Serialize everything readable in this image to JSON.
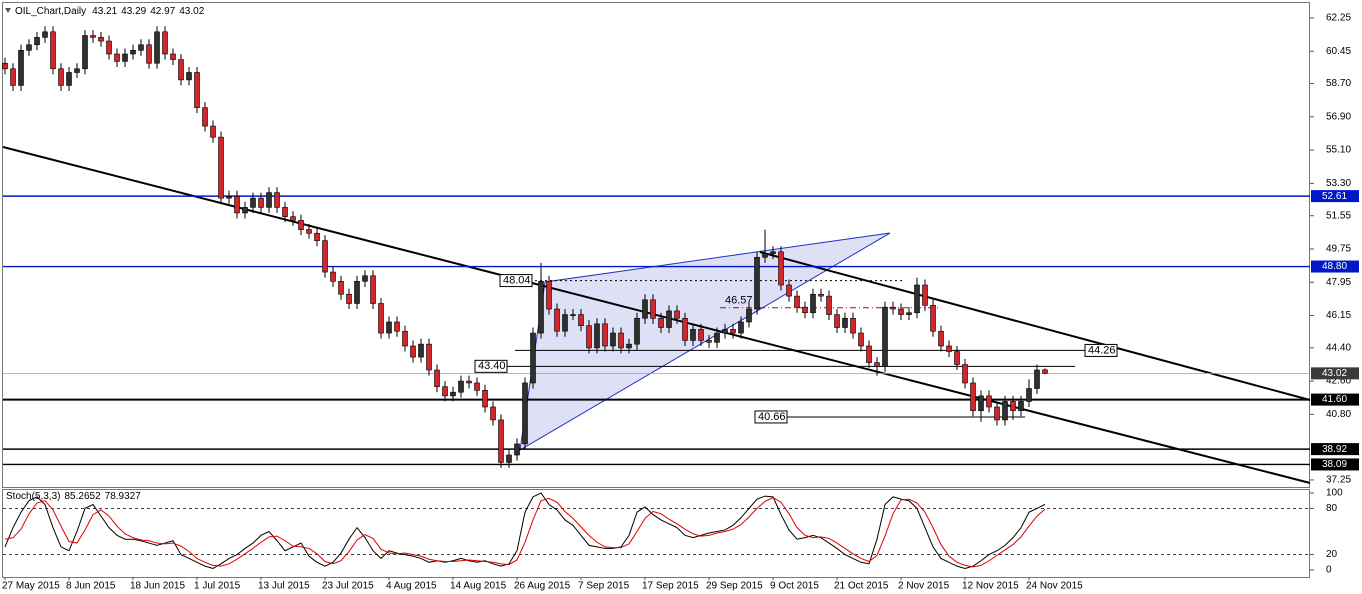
{
  "chart_data": {
    "type": "candlestick",
    "title": "OIL_Chart,Daily",
    "categories": [
      "27 May 2015",
      null,
      null,
      null,
      null,
      null,
      null,
      null,
      "8 Jun 2015",
      null,
      null,
      null,
      null,
      null,
      null,
      null,
      "18 Jun 2015",
      null,
      null,
      null,
      null,
      null,
      null,
      null,
      "1 Jul 2015",
      null,
      null,
      null,
      null,
      null,
      null,
      null,
      "13 Jul 2015",
      null,
      null,
      null,
      null,
      null,
      null,
      null,
      "23 Jul 2015",
      null,
      null,
      null,
      null,
      null,
      null,
      null,
      "4 Aug 2015",
      null,
      null,
      null,
      null,
      null,
      null,
      null,
      "14 Aug 2015",
      null,
      null,
      null,
      null,
      null,
      null,
      null,
      "26 Aug 2015",
      null,
      null,
      null,
      null,
      null,
      null,
      null,
      "7 Sep 2015",
      null,
      null,
      null,
      null,
      null,
      null,
      null,
      "17 Sep 2015",
      null,
      null,
      null,
      null,
      null,
      null,
      null,
      "29 Sep 2015",
      null,
      null,
      null,
      null,
      null,
      null,
      null,
      "9 Oct 2015",
      null,
      null,
      null,
      null,
      null,
      null,
      null,
      "21 Oct 2015",
      null,
      null,
      null,
      null,
      null,
      null,
      null,
      "2 Nov 2015",
      null,
      null,
      null,
      null,
      null,
      null,
      null,
      "12 Nov 2015",
      null,
      null,
      null,
      null,
      null,
      null,
      null,
      "24 Nov 2015",
      null,
      null
    ],
    "open": [
      59.8,
      59.5,
      58.6,
      60.5,
      60.8,
      61.2,
      61.5,
      59.5,
      58.6,
      59.3,
      59.5,
      61.3,
      61.2,
      61.0,
      60.3,
      59.9,
      60.3,
      60.5,
      60.8,
      59.8,
      61.5,
      60.3,
      60.0,
      58.9,
      59.3,
      57.4,
      56.4,
      55.8,
      52.5,
      52.6,
      51.7,
      52.0,
      52.5,
      52.0,
      52.8,
      52.0,
      51.5,
      51.3,
      50.8,
      50.6,
      50.2,
      48.5,
      48.0,
      47.3,
      46.8,
      48.0,
      48.3,
      46.8,
      45.2,
      45.8,
      45.3,
      44.5,
      43.9,
      44.6,
      43.2,
      42.3,
      41.8,
      42.0,
      42.6,
      42.5,
      42.1,
      41.2,
      40.5,
      38.2,
      38.6,
      39.2,
      42.5,
      45.2,
      48.0,
      46.5,
      45.3,
      46.2,
      46.2,
      45.6,
      44.4,
      45.7,
      44.5,
      45.2,
      44.4,
      44.6,
      46.0,
      47.0,
      46.0,
      45.5,
      46.4,
      46.0,
      44.8,
      45.4,
      44.8,
      44.7,
      45.2,
      45.4,
      45.2,
      45.8,
      46.5,
      49.3,
      49.5,
      49.6,
      47.8,
      47.2,
      46.6,
      46.3,
      47.3,
      47.2,
      46.2,
      45.5,
      46.0,
      45.2,
      44.5,
      43.6,
      43.4,
      46.6,
      46.5,
      46.2,
      46.3,
      47.8,
      46.7,
      45.3,
      44.5,
      44.2,
      43.5,
      42.5,
      41.0,
      41.8,
      41.2,
      40.5,
      41.5,
      41.0,
      41.5,
      42.2,
      43.21
    ],
    "high": [
      60.1,
      59.8,
      60.8,
      61.1,
      61.5,
      61.8,
      61.8,
      59.8,
      59.6,
      59.8,
      61.6,
      61.6,
      61.5,
      61.3,
      60.6,
      60.6,
      60.8,
      61.1,
      61.1,
      61.8,
      61.8,
      60.6,
      60.3,
      59.6,
      59.6,
      57.7,
      56.7,
      56.1,
      52.9,
      52.9,
      52.3,
      52.8,
      52.8,
      53.1,
      53.1,
      52.3,
      51.8,
      51.6,
      51.1,
      50.9,
      50.5,
      48.8,
      48.3,
      47.6,
      48.3,
      48.6,
      48.6,
      47.1,
      46.1,
      46.1,
      45.6,
      44.8,
      44.9,
      44.9,
      43.5,
      42.6,
      42.3,
      42.9,
      42.9,
      42.8,
      42.4,
      41.5,
      40.8,
      38.9,
      39.5,
      42.8,
      45.5,
      49.0,
      48.3,
      46.8,
      46.5,
      46.5,
      46.5,
      45.9,
      46.0,
      46.0,
      45.5,
      45.5,
      44.9,
      46.3,
      47.3,
      47.3,
      46.3,
      46.7,
      46.7,
      46.3,
      45.7,
      45.7,
      45.1,
      45.5,
      45.7,
      45.7,
      46.1,
      46.8,
      49.6,
      50.8,
      49.9,
      49.9,
      48.1,
      47.5,
      46.9,
      47.6,
      47.6,
      47.5,
      46.5,
      46.3,
      46.3,
      45.5,
      44.8,
      43.9,
      46.9,
      46.9,
      46.8,
      46.6,
      48.2,
      48.1,
      47.0,
      45.6,
      44.8,
      44.5,
      43.8,
      42.8,
      42.1,
      42.1,
      41.5,
      41.8,
      41.8,
      41.8,
      42.7,
      43.5,
      43.29
    ],
    "low": [
      59.2,
      58.3,
      58.3,
      60.2,
      60.5,
      60.9,
      59.2,
      58.3,
      58.3,
      59.0,
      59.2,
      60.9,
      60.7,
      60.0,
      59.6,
      59.6,
      60.0,
      60.2,
      59.5,
      59.5,
      60.0,
      59.7,
      58.6,
      58.6,
      57.1,
      56.1,
      55.5,
      52.2,
      52.2,
      51.4,
      51.4,
      51.7,
      51.7,
      51.7,
      51.7,
      51.2,
      51.0,
      50.5,
      50.3,
      49.9,
      48.2,
      47.7,
      47.0,
      46.5,
      46.5,
      47.7,
      46.5,
      44.9,
      44.9,
      45.0,
      44.2,
      43.6,
      43.6,
      42.9,
      42.0,
      41.5,
      41.5,
      41.7,
      42.2,
      41.8,
      40.9,
      40.2,
      37.9,
      37.9,
      38.3,
      38.9,
      42.2,
      44.9,
      46.2,
      45.0,
      45.0,
      45.9,
      45.3,
      44.1,
      44.1,
      44.2,
      44.2,
      44.1,
      44.1,
      44.3,
      45.7,
      45.7,
      45.2,
      45.2,
      45.7,
      44.5,
      44.5,
      44.5,
      44.4,
      44.4,
      44.9,
      44.9,
      44.9,
      45.5,
      46.2,
      49.0,
      49.2,
      47.5,
      46.9,
      46.3,
      46.0,
      46.0,
      46.9,
      45.9,
      45.2,
      45.2,
      44.9,
      44.2,
      43.3,
      42.9,
      43.1,
      46.2,
      45.9,
      45.9,
      46.0,
      46.4,
      45.0,
      44.2,
      43.9,
      43.2,
      42.2,
      40.7,
      40.4,
      40.9,
      40.2,
      40.2,
      40.5,
      40.7,
      41.2,
      41.9,
      42.97
    ],
    "close": [
      59.5,
      58.6,
      60.5,
      60.8,
      61.2,
      61.5,
      59.5,
      58.6,
      59.3,
      59.5,
      61.3,
      61.2,
      61.0,
      60.3,
      59.9,
      60.3,
      60.5,
      60.8,
      59.8,
      61.5,
      60.3,
      60.0,
      58.9,
      59.3,
      57.4,
      56.4,
      55.8,
      52.5,
      52.6,
      51.7,
      52.0,
      52.5,
      52.0,
      52.8,
      52.0,
      51.5,
      51.3,
      50.8,
      50.6,
      50.2,
      48.5,
      48.0,
      47.3,
      46.8,
      48.0,
      48.3,
      46.8,
      45.2,
      45.8,
      45.3,
      44.5,
      43.9,
      44.6,
      43.2,
      42.3,
      41.8,
      42.0,
      42.6,
      42.5,
      42.1,
      41.2,
      40.5,
      38.2,
      38.6,
      39.2,
      42.5,
      45.2,
      48.0,
      46.5,
      45.3,
      46.2,
      46.2,
      45.6,
      44.4,
      45.7,
      44.5,
      45.2,
      44.4,
      44.6,
      46.0,
      47.0,
      46.0,
      45.5,
      46.4,
      46.0,
      44.8,
      45.4,
      44.8,
      44.7,
      45.2,
      45.4,
      45.2,
      45.8,
      46.5,
      49.3,
      49.5,
      49.6,
      47.8,
      47.2,
      46.6,
      46.3,
      47.3,
      47.2,
      46.2,
      45.5,
      46.0,
      45.2,
      44.5,
      43.6,
      43.4,
      46.6,
      46.5,
      46.2,
      46.3,
      47.8,
      46.7,
      45.3,
      44.5,
      44.2,
      43.5,
      42.5,
      41.0,
      41.8,
      41.2,
      40.5,
      41.5,
      41.0,
      41.5,
      42.2,
      43.2,
      43.02
    ],
    "colors": {
      "up": "#303030",
      "down": "#d0262c",
      "price": "#d4a017"
    },
    "ylim": [
      36.87,
      63.06
    ],
    "yticks": [
      62.25,
      60.45,
      {
        "value": 58.7,
        "label": "58.70"
      },
      {
        "value": 56.9,
        "label": "56.90"
      },
      {
        "value": 55.1,
        "label": "55.10"
      },
      {
        "value": 53.3,
        "label": "53.30"
      },
      51.55,
      49.75,
      47.95,
      46.15,
      {
        "value": 44.4,
        "label": "44.40"
      },
      {
        "value": 42.6,
        "label": "42.60"
      },
      {
        "value": 40.8,
        "label": "40.80"
      },
      37.25
    ],
    "hlines": [
      {
        "value": 52.61,
        "color": "#0018c8"
      },
      {
        "value": 48.8,
        "label": "48.80",
        "color": "#0018c8"
      },
      {
        "value": 41.6,
        "label": "41.60",
        "color": "#000000"
      },
      {
        "value": 38.92,
        "color": "#000000"
      },
      {
        "value": 38.09,
        "color": "#000000"
      }
    ],
    "annotations": [
      {
        "value": 48.04,
        "color": "#000000"
      },
      {
        "value": 46.57,
        "color": "#c00000"
      },
      {
        "value": 44.26,
        "color": "#000000"
      },
      {
        "value": 43.4,
        "label": "43.40",
        "color": "#000000"
      },
      {
        "value": 40.66,
        "color": "#000000"
      }
    ],
    "indicator": {
      "type": "line",
      "title": "Stoch(5,3,3)",
      "ylim": [
        -9.1,
        105.2
      ],
      "yticks": [
        100,
        80,
        20,
        0
      ],
      "series": [
        {
          "color": "#000000",
          "values": [
            30,
            55,
            75,
            90,
            95,
            85,
            55,
            30,
            25,
            50,
            80,
            85,
            70,
            55,
            45,
            40,
            40,
            38,
            35,
            32,
            35,
            38,
            20,
            15,
            10,
            5,
            2,
            8,
            15,
            20,
            28,
            35,
            45,
            50,
            38,
            25,
            30,
            35,
            18,
            10,
            5,
            10,
            22,
            40,
            55,
            42,
            25,
            15,
            25,
            22,
            20,
            18,
            15,
            10,
            12,
            10,
            12,
            15,
            12,
            10,
            12,
            8,
            5,
            8,
            25,
            75,
            95,
            100,
            85,
            78,
            65,
            58,
            45,
            32,
            30,
            28,
            28,
            30,
            45,
            75,
            82,
            72,
            65,
            60,
            55,
            45,
            42,
            45,
            48,
            50,
            52,
            58,
            68,
            80,
            92,
            96,
            95,
            72,
            52,
            40,
            42,
            45,
            42,
            35,
            28,
            20,
            15,
            10,
            8,
            40,
            85,
            95,
            92,
            90,
            80,
            55,
            30,
            15,
            10,
            5,
            2,
            5,
            12,
            20,
            25,
            32,
            42,
            55,
            75,
            80,
            85.2652
          ]
        },
        {
          "color": "#e00000",
          "values": [
            40,
            42,
            53,
            73,
            87,
            90,
            78,
            57,
            37,
            35,
            52,
            72,
            78,
            70,
            57,
            47,
            42,
            39,
            38,
            35,
            34,
            35,
            31,
            24,
            15,
            10,
            6,
            5,
            8,
            14,
            21,
            28,
            36,
            43,
            44,
            38,
            31,
            30,
            28,
            21,
            11,
            8,
            12,
            24,
            39,
            46,
            41,
            27,
            22,
            21,
            22,
            20,
            18,
            14,
            12,
            11,
            11,
            12,
            13,
            12,
            11,
            10,
            8,
            7,
            13,
            36,
            65,
            90,
            93,
            88,
            76,
            67,
            56,
            45,
            36,
            30,
            29,
            29,
            34,
            50,
            67,
            76,
            73,
            66,
            60,
            53,
            47,
            44,
            45,
            48,
            50,
            53,
            59,
            69,
            80,
            89,
            94,
            88,
            73,
            55,
            45,
            42,
            43,
            41,
            35,
            28,
            21,
            15,
            11,
            19,
            44,
            73,
            91,
            92,
            87,
            75,
            55,
            33,
            18,
            10,
            6,
            4,
            6,
            12,
            19,
            26,
            33,
            43,
            57,
            70,
            78.9327
          ]
        }
      ]
    }
  }
}
